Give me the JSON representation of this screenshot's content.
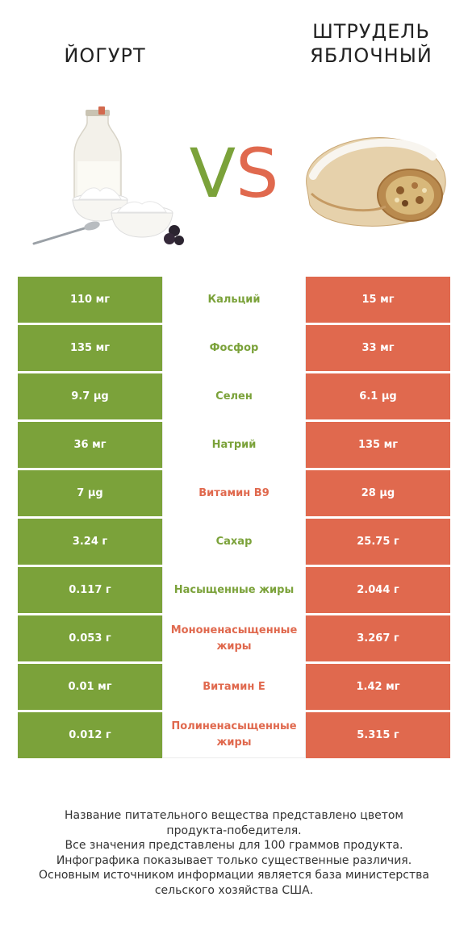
{
  "header": {
    "left_product": "ЙОГУРТ",
    "right_product_line1": "ШТРУДЕЛЬ",
    "right_product_line2": "ЯБЛОЧНЫЙ",
    "vs_v": "V",
    "vs_s": "S"
  },
  "colors": {
    "green": "#7ba23a",
    "red": "#e0694e"
  },
  "images": {
    "left": "yogurt-image",
    "right": "apple-strudel-image"
  },
  "rows": [
    {
      "left": "110 мг",
      "nutrient": "Кальций",
      "right": "15 мг",
      "winner": "green"
    },
    {
      "left": "135 мг",
      "nutrient": "Фосфор",
      "right": "33 мг",
      "winner": "green"
    },
    {
      "left": "9.7 µg",
      "nutrient": "Селен",
      "right": "6.1 µg",
      "winner": "green"
    },
    {
      "left": "36 мг",
      "nutrient": "Натрий",
      "right": "135 мг",
      "winner": "green"
    },
    {
      "left": "7 µg",
      "nutrient": "Витамин B9",
      "right": "28 µg",
      "winner": "red"
    },
    {
      "left": "3.24 г",
      "nutrient": "Сахар",
      "right": "25.75 г",
      "winner": "green"
    },
    {
      "left": "0.117 г",
      "nutrient": "Насыщенные жиры",
      "right": "2.044 г",
      "winner": "green"
    },
    {
      "left": "0.053 г",
      "nutrient": "Мононенасыщенные жиры",
      "right": "3.267 г",
      "winner": "red"
    },
    {
      "left": "0.01 мг",
      "nutrient": "Витамин E",
      "right": "1.42 мг",
      "winner": "red"
    },
    {
      "left": "0.012 г",
      "nutrient": "Полиненасыщенные жиры",
      "right": "5.315 г",
      "winner": "red"
    }
  ],
  "footer": {
    "line1": "Название питательного вещества представлено цветом",
    "line2": "продукта-победителя.",
    "line3": "Все значения представлены для 100 граммов продукта.",
    "line4": "Инфографика показывает только существенные различия.",
    "line5": "Основным источником информации является база министерства",
    "line6": "сельского хозяйства США."
  }
}
